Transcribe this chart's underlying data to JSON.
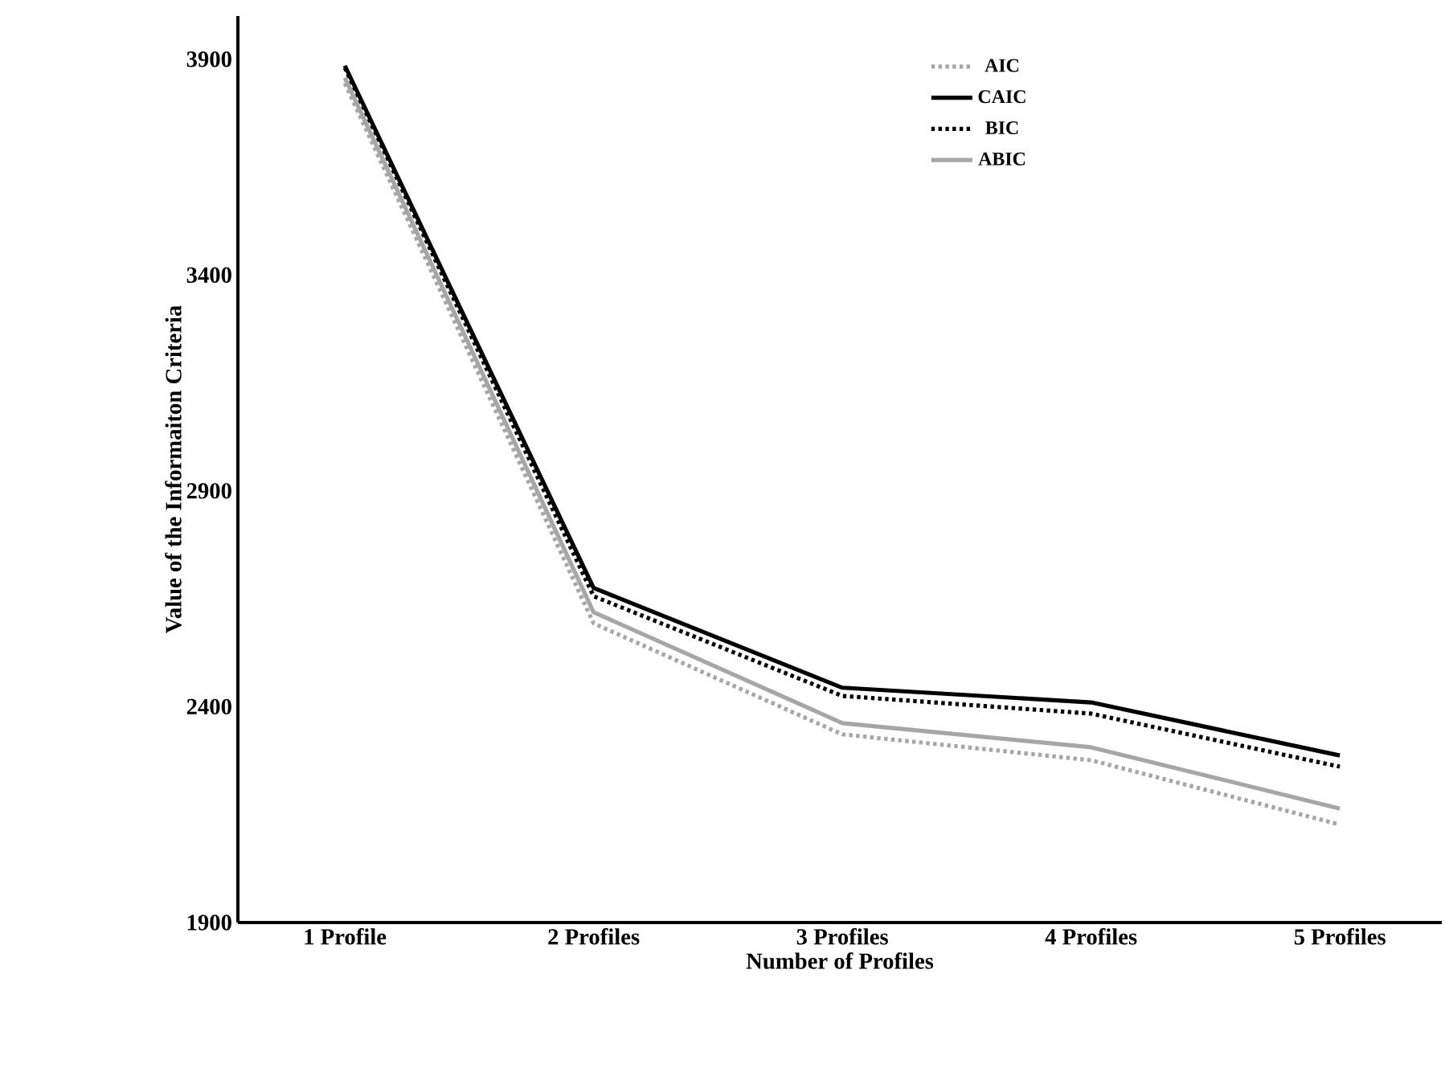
{
  "chart_data": {
    "type": "line",
    "xlabel": "Number of Profiles",
    "ylabel": "Value of the Informaiton Criteria",
    "categories": [
      "1 Profile",
      "2 Profiles",
      "3 Profiles",
      "4 Profiles",
      "5 Profiles"
    ],
    "ylim": [
      1900,
      4000
    ],
    "yticks": [
      1900,
      2400,
      2900,
      3400,
      3900
    ],
    "grid": false,
    "legend": "top right",
    "marker": "none",
    "series": [
      {
        "name": "AIC",
        "color": "#a6a6a6",
        "line_style": "dotted",
        "values": [
          3844,
          2593,
          2336,
          2276,
          2127
        ]
      },
      {
        "name": "CAIC",
        "color": "#000000",
        "line_style": "solid",
        "values": [
          3885,
          2675,
          2444,
          2410,
          2287
        ]
      },
      {
        "name": "BIC",
        "color": "#000000",
        "line_style": "dotted",
        "values": [
          3880,
          2656,
          2425,
          2384,
          2261
        ]
      },
      {
        "name": "ABIC",
        "color": "#a6a6a6",
        "line_style": "solid",
        "values": [
          3857,
          2619,
          2362,
          2306,
          2164
        ]
      }
    ]
  }
}
